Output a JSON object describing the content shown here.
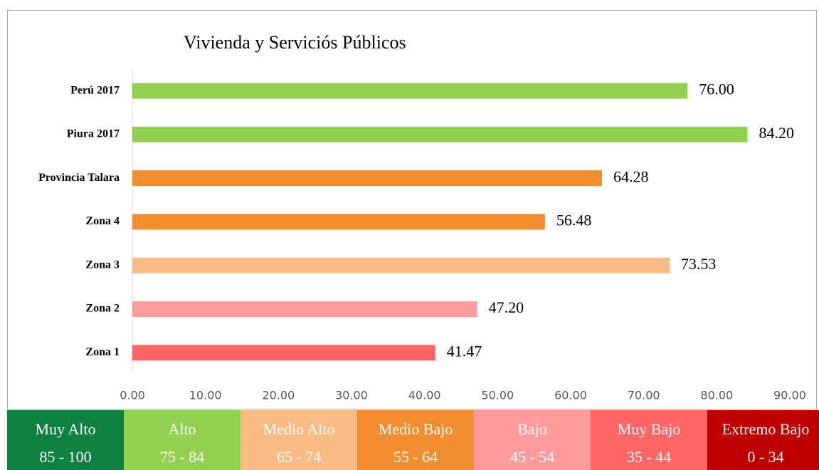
{
  "chart_data": {
    "type": "bar",
    "orientation": "horizontal",
    "title": "Vivienda y Serviciós Públicos",
    "categories": [
      "Perú 2017",
      "Piura 2017",
      "Provincia Talara",
      "Zona 4",
      "Zona 3",
      "Zona 2",
      "Zona 1"
    ],
    "values": [
      76,
      84.2,
      64.28,
      56.48,
      73.53,
      47.2,
      41.47
    ],
    "value_labels": [
      "76.00",
      "84.20",
      "64.28",
      "56.48",
      "73.53",
      "47.20",
      "41.47"
    ],
    "colors": [
      "#92d050",
      "#92d050",
      "#f28e2f",
      "#f28e2f",
      "#f8bb84",
      "#ff9b9b",
      "#ff6666"
    ],
    "xlim": [
      0,
      90
    ],
    "xticks": [
      {
        "value": 0,
        "label": "0.00"
      },
      {
        "value": 10,
        "label": "10.00"
      },
      {
        "value": 20,
        "label": "20.00"
      },
      {
        "value": 30,
        "label": "30.00"
      },
      {
        "value": 40,
        "label": "40.00"
      },
      {
        "value": 50,
        "label": "50.00"
      },
      {
        "value": 60,
        "label": "60.00"
      },
      {
        "value": 70,
        "label": "70.00"
      },
      {
        "value": 80,
        "label": "80.00"
      },
      {
        "value": 90,
        "label": "90.00"
      }
    ],
    "grid": false,
    "legend_scale": [
      {
        "label": "Muy Alto",
        "range": "85 - 100",
        "color": "#0e8040"
      },
      {
        "label": "Alto",
        "range": "75 - 84",
        "color": "#92d050"
      },
      {
        "label": "Medio Alto",
        "range": "65 - 74",
        "color": "#f8bb84"
      },
      {
        "label": "Medio Bajo",
        "range": "55 - 64",
        "color": "#f28e2f"
      },
      {
        "label": "Bajo",
        "range": "45 - 54",
        "color": "#ff9b9b"
      },
      {
        "label": "Muy Bajo",
        "range": "35 - 44",
        "color": "#ff6666"
      },
      {
        "label": "Extremo Bajo",
        "range": "0 - 34",
        "color": "#c00000"
      }
    ]
  }
}
